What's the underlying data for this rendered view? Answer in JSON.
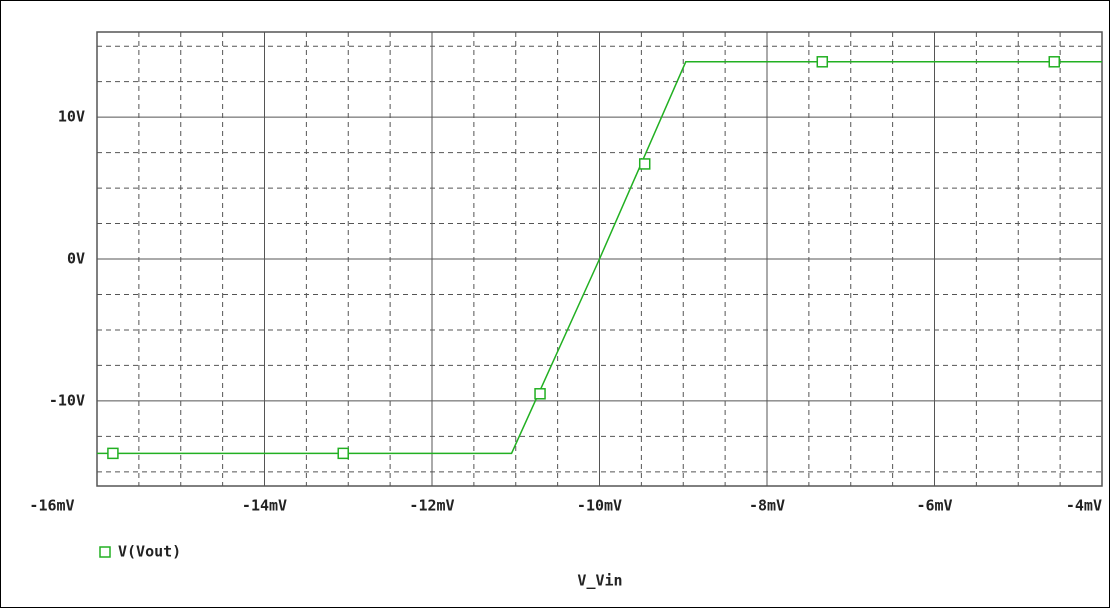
{
  "chart_data": {
    "type": "line",
    "x_label": "V_Vin",
    "xlim": [
      -16,
      -4
    ],
    "xticks": [
      {
        "value": -16,
        "label": "-16mV"
      },
      {
        "value": -14,
        "label": "-14mV"
      },
      {
        "value": -12,
        "label": "-12mV"
      },
      {
        "value": -10,
        "label": "-10mV"
      },
      {
        "value": -8,
        "label": "-8mV"
      },
      {
        "value": -6,
        "label": "-6mV"
      },
      {
        "value": -4,
        "label": "-4mV"
      }
    ],
    "ylim": [
      -16,
      16
    ],
    "yticks": [
      {
        "value": -10,
        "label": "-10V"
      },
      {
        "value": 0,
        "label": "0V"
      },
      {
        "value": 10,
        "label": "10V"
      }
    ],
    "grid": true,
    "legend": "bottom-left",
    "series": [
      {
        "name": "V(Vout)",
        "color": "#22b022",
        "x": [
          -16,
          -11.05,
          -10,
          -8.97,
          -4
        ],
        "values": [
          -13.7,
          -13.7,
          0,
          13.9,
          13.9
        ],
        "marker_x": [
          -15.81,
          -13.06,
          -10.71,
          -9.46,
          -7.34,
          -4.57
        ],
        "marker_values": [
          -13.7,
          -13.7,
          -9.5,
          6.7,
          13.9,
          13.9
        ]
      }
    ]
  }
}
